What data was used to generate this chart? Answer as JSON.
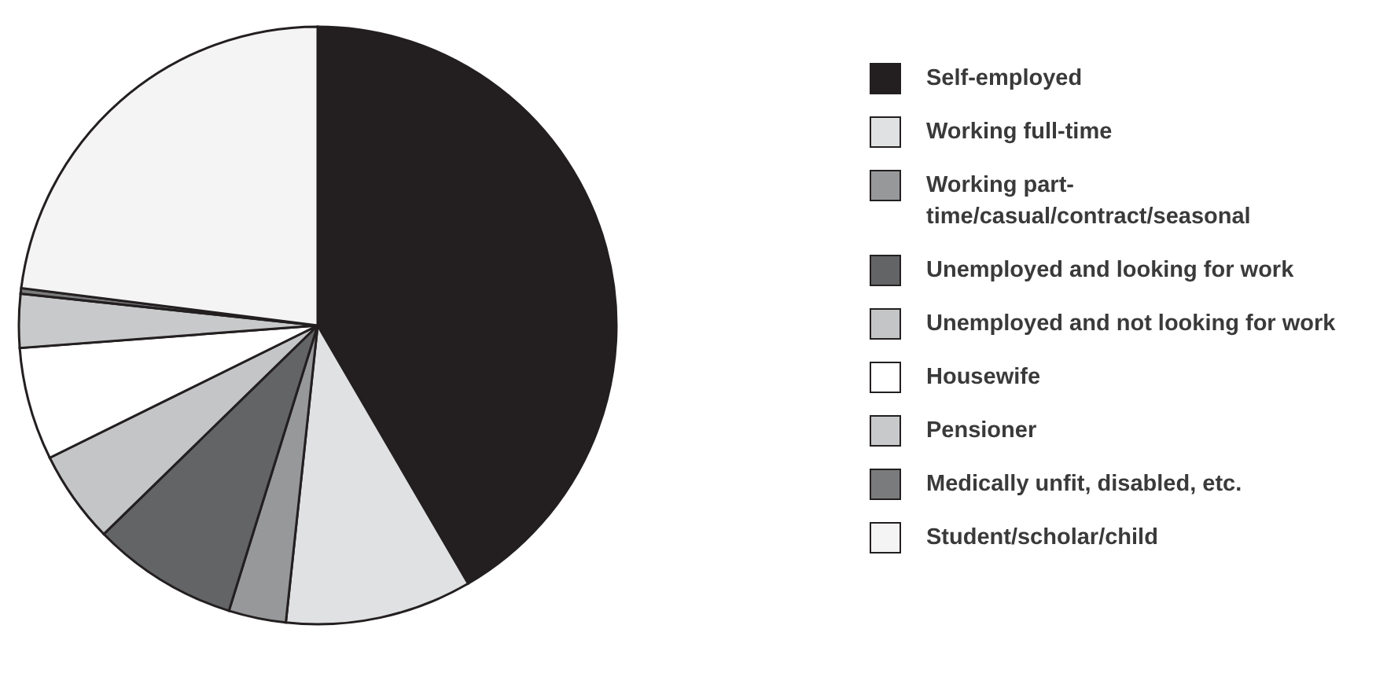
{
  "chart_data": {
    "type": "pie",
    "categories": [
      "Self-employed",
      "Working full-time",
      "Working part-time/casual/contract/seasonal",
      "Unemployed and looking for work",
      "Unemployed and not looking for work",
      "Housewife",
      "Pensioner",
      "Medically unfit, disabled, etc.",
      "Student/scholar/child"
    ],
    "values": [
      41.6,
      10.1,
      3.1,
      7.9,
      5.0,
      6.1,
      2.9,
      0.3,
      23.0
    ],
    "colors": [
      "#231f20",
      "#e0e1e2",
      "#97989a",
      "#636466",
      "#c4c5c7",
      "#ffffff",
      "#c8c9ca",
      "#7a7b7d",
      "#f4f4f4"
    ],
    "legend": "right"
  }
}
